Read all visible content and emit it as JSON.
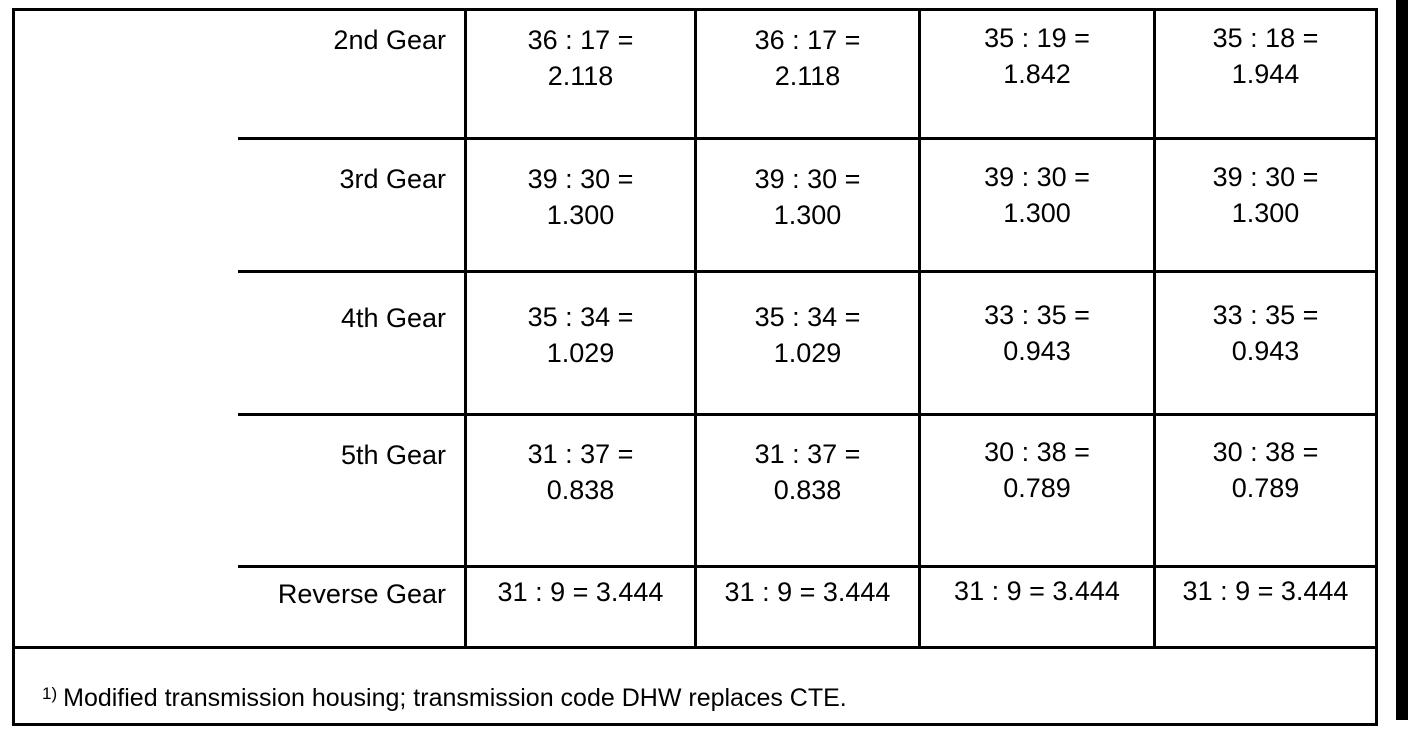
{
  "table": {
    "rows": [
      {
        "label": "2nd Gear",
        "cells": [
          [
            "36 : 17 =",
            "2.118"
          ],
          [
            "36 : 17 =",
            "2.118"
          ],
          [
            "35 : 19 =",
            "1.842"
          ],
          [
            "35 : 18 =",
            "1.944"
          ]
        ]
      },
      {
        "label": "3rd Gear",
        "cells": [
          [
            "39 : 30 =",
            "1.300"
          ],
          [
            "39 : 30 =",
            "1.300"
          ],
          [
            "39 : 30 =",
            "1.300"
          ],
          [
            "39 : 30 =",
            "1.300"
          ]
        ]
      },
      {
        "label": "4th Gear",
        "cells": [
          [
            "35 : 34 =",
            "1.029"
          ],
          [
            "35 : 34 =",
            "1.029"
          ],
          [
            "33 : 35 =",
            "0.943"
          ],
          [
            "33 : 35 =",
            "0.943"
          ]
        ]
      },
      {
        "label": "5th Gear",
        "cells": [
          [
            "31 : 37 =",
            "0.838"
          ],
          [
            "31 : 37 =",
            "0.838"
          ],
          [
            "30 : 38 =",
            "0.789"
          ],
          [
            "30 : 38 =",
            "0.789"
          ]
        ]
      },
      {
        "label": "Reverse Gear",
        "cells": [
          [
            "31 : 9 = 3.444"
          ],
          [
            "31 : 9 = 3.444"
          ],
          [
            "31 : 9 = 3.444"
          ],
          [
            "31 : 9 = 3.444"
          ]
        ]
      }
    ]
  },
  "footnote": {
    "marker": "1)",
    "text": "Modified transmission housing; transmission code DHW replaces CTE."
  }
}
